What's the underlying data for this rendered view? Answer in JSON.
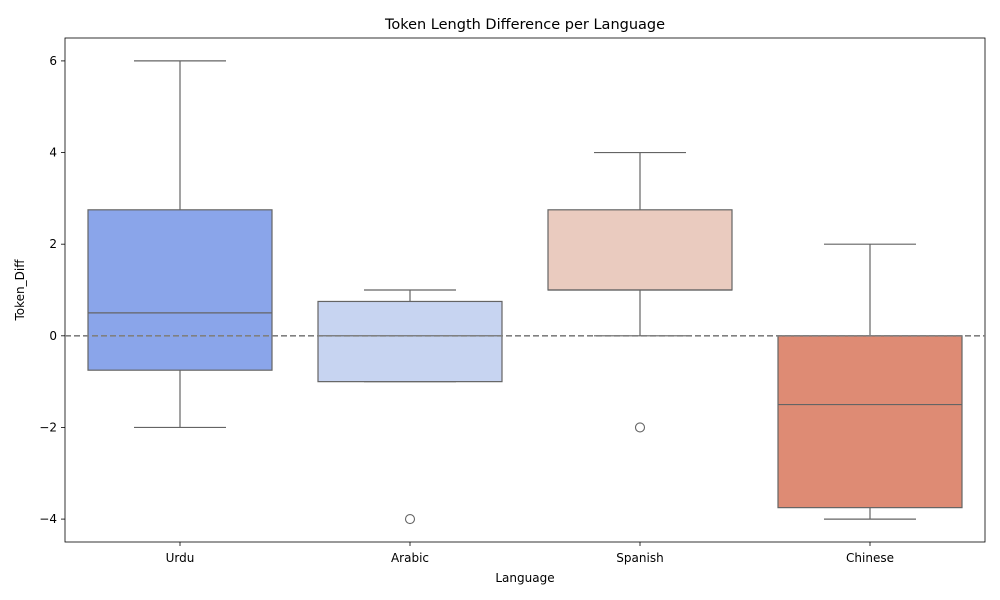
{
  "chart_data": {
    "type": "box",
    "title": "Token Length Difference per Language",
    "xlabel": "Language",
    "ylabel": "Token_Diff",
    "ylim": [
      -4.5,
      6.5
    ],
    "yticks": [
      6,
      4,
      2,
      0,
      -2,
      -4
    ],
    "ytick_labels": [
      "6",
      "4",
      "2",
      "0",
      "−2",
      "−4"
    ],
    "reference_line": {
      "y": 0,
      "style": "dashed",
      "color": "#808080"
    },
    "grid": false,
    "categories": [
      "Urdu",
      "Arabic",
      "Spanish",
      "Chinese"
    ],
    "boxes": [
      {
        "category": "Urdu",
        "whisker_low": -2,
        "q1": -0.75,
        "median": 0.5,
        "q3": 2.75,
        "whisker_high": 6,
        "outliers": [],
        "color": "#8aa5ea"
      },
      {
        "category": "Arabic",
        "whisker_low": -1,
        "q1": -1,
        "median": 0,
        "q3": 0.75,
        "whisker_high": 1,
        "outliers": [
          -4
        ],
        "color": "#c7d4f1"
      },
      {
        "category": "Spanish",
        "whisker_low": 0,
        "q1": 1,
        "median": 1,
        "q3": 2.75,
        "whisker_high": 4,
        "outliers": [
          -2
        ],
        "color": "#eacbbf"
      },
      {
        "category": "Chinese",
        "whisker_low": -4,
        "q1": -3.75,
        "median": -1.5,
        "q3": 0,
        "whisker_high": 2,
        "outliers": [],
        "color": "#de8b74"
      }
    ],
    "line_color": "#646464"
  }
}
